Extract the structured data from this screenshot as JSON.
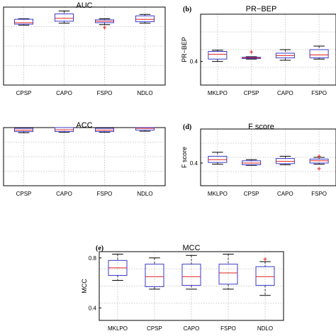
{
  "chart_data": [
    {
      "panel": "",
      "type": "box",
      "title": "AUC",
      "ylabel": "",
      "ylim": [
        0.2,
        1.0
      ],
      "yticks": [],
      "categories": [
        "CPSP",
        "CAPO",
        "FSPO",
        "NDLO"
      ],
      "boxes": [
        {
          "whislo": 0.815,
          "q1": 0.825,
          "med": 0.84,
          "q3": 0.875,
          "whishi": 0.88,
          "fliers": []
        },
        {
          "whislo": 0.835,
          "q1": 0.855,
          "med": 0.885,
          "q3": 0.93,
          "whishi": 0.96,
          "fliers": []
        },
        {
          "whislo": 0.82,
          "q1": 0.84,
          "med": 0.855,
          "q3": 0.87,
          "whishi": 0.88,
          "fliers": [
            0.79
          ]
        },
        {
          "whislo": 0.835,
          "q1": 0.85,
          "med": 0.875,
          "q3": 0.91,
          "whishi": 0.925,
          "fliers": []
        }
      ]
    },
    {
      "panel": "(b)",
      "type": "box",
      "title": "PR−BEP",
      "ylabel": "PR−BEP",
      "ylim": [
        0.2,
        0.8
      ],
      "yticks": [
        "0.4"
      ],
      "categories": [
        "MKLPO",
        "CPSP",
        "CAPO",
        "FSPO"
      ],
      "boxes": [
        {
          "whislo": 0.4,
          "q1": 0.42,
          "med": 0.46,
          "q3": 0.485,
          "whishi": 0.495,
          "fliers": []
        },
        {
          "whislo": 0.42,
          "q1": 0.425,
          "med": 0.43,
          "q3": 0.435,
          "whishi": 0.44,
          "fliers": [
            0.48
          ]
        },
        {
          "whislo": 0.41,
          "q1": 0.43,
          "med": 0.45,
          "q3": 0.47,
          "whishi": 0.5,
          "fliers": []
        },
        {
          "whislo": 0.42,
          "q1": 0.43,
          "med": 0.455,
          "q3": 0.5,
          "whishi": 0.53,
          "fliers": []
        }
      ]
    },
    {
      "panel": "",
      "type": "box",
      "title": "ACC",
      "ylabel": "",
      "ylim": [
        0.2,
        1.0
      ],
      "yticks": [],
      "categories": [
        "CPSP",
        "CAPO",
        "FSPO",
        "NDLO"
      ],
      "boxes": [
        {
          "whislo": 0.93,
          "q1": 0.945,
          "med": 0.965,
          "q3": 0.99,
          "whishi": 1.0,
          "fliers": []
        },
        {
          "whislo": 0.935,
          "q1": 0.945,
          "med": 0.97,
          "q3": 1.0,
          "whishi": 1.0,
          "fliers": []
        },
        {
          "whislo": 0.935,
          "q1": 0.945,
          "med": 0.965,
          "q3": 0.99,
          "whishi": 1.0,
          "fliers": []
        },
        {
          "whislo": 0.95,
          "q1": 0.965,
          "med": 0.99,
          "q3": 1.0,
          "whishi": 1.0,
          "fliers": []
        }
      ]
    },
    {
      "panel": "(d)",
      "type": "box",
      "title": "F score",
      "ylabel": "F score",
      "ylim": [
        0.2,
        0.7
      ],
      "yticks": [
        "0.4"
      ],
      "categories": [
        "MKLPO",
        "CPSP",
        "CAPO",
        "FSPO"
      ],
      "boxes": [
        {
          "whislo": 0.39,
          "q1": 0.405,
          "med": 0.43,
          "q3": 0.46,
          "whishi": 0.495,
          "fliers": []
        },
        {
          "whislo": 0.38,
          "q1": 0.385,
          "med": 0.4,
          "q3": 0.42,
          "whishi": 0.43,
          "fliers": []
        },
        {
          "whislo": 0.385,
          "q1": 0.395,
          "med": 0.415,
          "q3": 0.44,
          "whishi": 0.46,
          "fliers": []
        },
        {
          "whislo": 0.39,
          "q1": 0.4,
          "med": 0.42,
          "q3": 0.435,
          "whishi": 0.45,
          "fliers": [
            0.35,
            0.46
          ]
        }
      ]
    },
    {
      "panel": "(e)",
      "type": "box",
      "title": "MCC",
      "ylabel": "MCC",
      "ylim": [
        0.3,
        0.85
      ],
      "yticks": [
        "0.4",
        "0.8"
      ],
      "categories": [
        "MKLPO",
        "CPSP",
        "CAPO",
        "FSPO",
        "NDLO"
      ],
      "boxes": [
        {
          "whislo": 0.62,
          "q1": 0.66,
          "med": 0.72,
          "q3": 0.78,
          "whishi": 0.83,
          "fliers": []
        },
        {
          "whislo": 0.55,
          "q1": 0.57,
          "med": 0.65,
          "q3": 0.75,
          "whishi": 0.8,
          "fliers": []
        },
        {
          "whislo": 0.55,
          "q1": 0.58,
          "med": 0.65,
          "q3": 0.75,
          "whishi": 0.82,
          "fliers": []
        },
        {
          "whislo": 0.55,
          "q1": 0.59,
          "med": 0.68,
          "q3": 0.75,
          "whishi": 0.83,
          "fliers": []
        },
        {
          "whislo": 0.5,
          "q1": 0.58,
          "med": 0.65,
          "q3": 0.73,
          "whishi": 0.77,
          "fliers": [
            0.79
          ]
        }
      ]
    }
  ]
}
